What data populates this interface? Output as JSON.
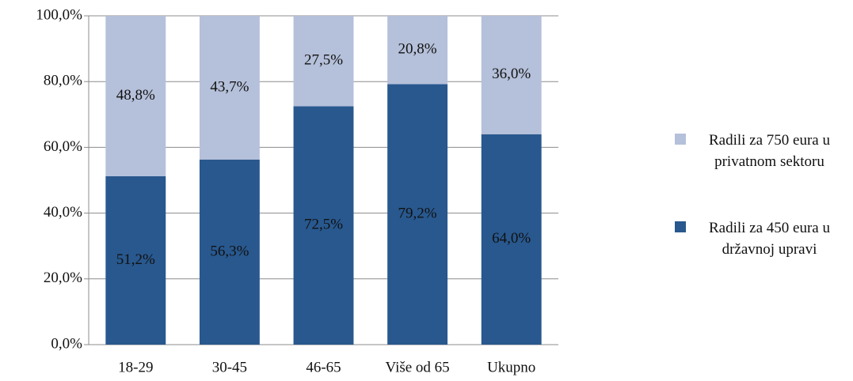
{
  "chart_data": {
    "type": "stacked_bar",
    "categories": [
      "18-29",
      "30-45",
      "46-65",
      "Više od 65",
      "Ukupno"
    ],
    "series": [
      {
        "name": "Radili za 450 eura u državnoj upravi",
        "color": "#28588e",
        "values": [
          51.2,
          56.3,
          72.5,
          79.2,
          64.0
        ],
        "value_labels": [
          "51,2%",
          "56,3%",
          "72,5%",
          "79,2%",
          "64,0%"
        ]
      },
      {
        "name": "Radili za 750 eura u privatnom sektoru",
        "color": "#b5c0da",
        "values": [
          48.8,
          43.7,
          27.5,
          20.8,
          36.0
        ],
        "value_labels": [
          "48,8%",
          "43,7%",
          "27,5%",
          "20,8%",
          "36,0%"
        ]
      }
    ],
    "ylim": [
      0,
      100
    ],
    "yticks": [
      {
        "value": 0,
        "label": "0,0%"
      },
      {
        "value": 20,
        "label": "20,0%"
      },
      {
        "value": 40,
        "label": "40,0%"
      },
      {
        "value": 60,
        "label": "60,0%"
      },
      {
        "value": 80,
        "label": "80,0%"
      },
      {
        "value": 100,
        "label": "100,0%"
      }
    ],
    "grid": true,
    "legend": "right"
  }
}
